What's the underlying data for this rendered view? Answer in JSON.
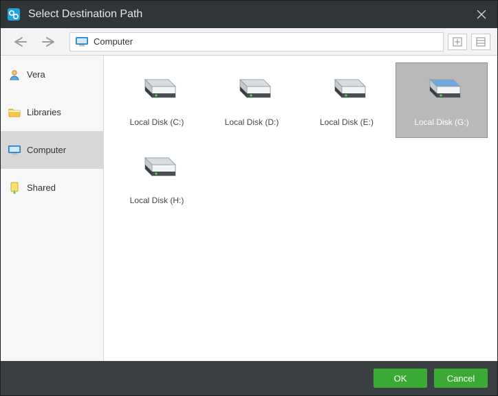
{
  "window": {
    "title": "Select Destination Path"
  },
  "breadcrumb": {
    "label": "Computer"
  },
  "sidebar": {
    "items": [
      {
        "label": "Vera",
        "icon": "user",
        "selected": false
      },
      {
        "label": "Libraries",
        "icon": "folder",
        "selected": false
      },
      {
        "label": "Computer",
        "icon": "computer",
        "selected": true
      },
      {
        "label": "Shared",
        "icon": "shared",
        "selected": false
      }
    ]
  },
  "drives": [
    {
      "label": "Local Disk (C:)",
      "selected": false,
      "color": "#d9dde0"
    },
    {
      "label": "Local Disk (D:)",
      "selected": false,
      "color": "#d9dde0"
    },
    {
      "label": "Local Disk (E:)",
      "selected": false,
      "color": "#d9dde0"
    },
    {
      "label": "Local Disk (G:)",
      "selected": true,
      "color": "#6ea8dc"
    },
    {
      "label": "Local Disk (H:)",
      "selected": false,
      "color": "#d9dde0"
    }
  ],
  "footer": {
    "ok_label": "OK",
    "cancel_label": "Cancel"
  },
  "colors": {
    "titlebar_bg": "#303538",
    "chrome_bg": "#3a3f42",
    "sidebar_bg": "#f7f7f7",
    "sidebar_selected_bg": "#d7d7d7",
    "button_bg": "#3aaa35"
  }
}
